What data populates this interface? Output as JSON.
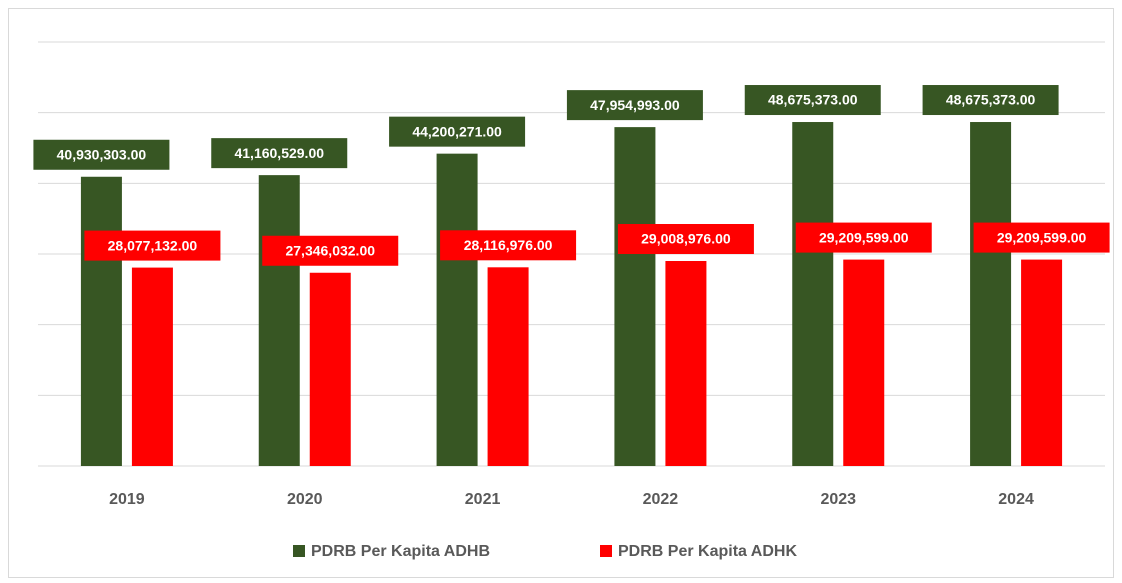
{
  "chart_data": {
    "type": "bar",
    "categories": [
      "2019",
      "2020",
      "2021",
      "2022",
      "2023",
      "2024"
    ],
    "series": [
      {
        "name": "PDRB Per Kapita ADHB",
        "color": "#375623",
        "values": [
          40930303,
          41160529,
          44200271,
          47954993,
          48675373,
          48675373
        ],
        "value_labels": [
          "40,930,303.00",
          "41,160,529.00",
          "44,200,271.00",
          "47,954,993.00",
          "48,675,373.00",
          "48,675,373.00"
        ]
      },
      {
        "name": "PDRB Per Kapita ADHK",
        "color": "#ff0000",
        "values": [
          28077132,
          27346032,
          28116976,
          29008976,
          29209599,
          29209599
        ],
        "value_labels": [
          "28,077,132.00",
          "27,346,032.00",
          "28,116,976.00",
          "29,008,976.00",
          "29,209,599.00",
          "29,209,599.00"
        ]
      }
    ],
    "ylim": [
      0,
      60000000
    ],
    "yticks": [
      0,
      10000000,
      20000000,
      30000000,
      40000000,
      50000000,
      60000000
    ],
    "grid": true
  }
}
